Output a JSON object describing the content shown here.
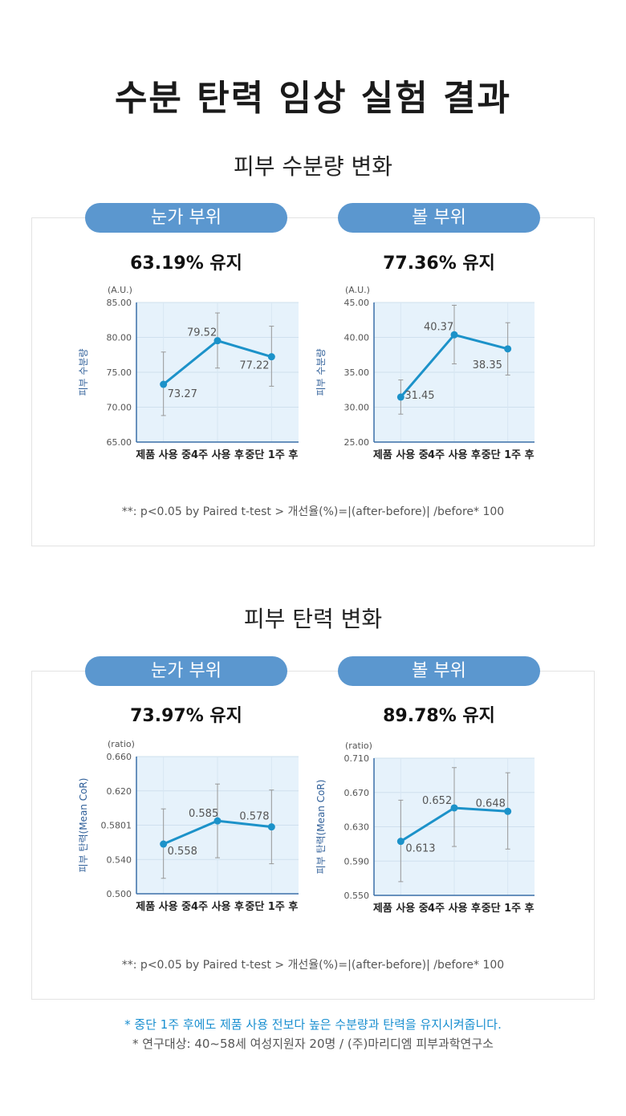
{
  "title": "수분 탄력 임상 실험 결과",
  "sections": [
    {
      "title": "피부 수분량 변화",
      "note": "**: p<0.05 by Paired t-test > 개선율(%)=|(after-before)| /before* 100"
    },
    {
      "title": "피부 탄력 변화",
      "note": "**: p<0.05 by Paired t-test > 개선율(%)=|(after-before)| /before* 100"
    }
  ],
  "panels": [
    {
      "pill": "눈가 부위",
      "percent": "63.19% 유지"
    },
    {
      "pill": "볼 부위",
      "percent": "77.36% 유지"
    },
    {
      "pill": "눈가 부위",
      "percent": "73.97% 유지"
    },
    {
      "pill": "볼 부위",
      "percent": "89.78% 유지"
    }
  ],
  "chart_data": [
    {
      "type": "line",
      "unit": "(A.U.)",
      "ylabel": "피부 수분량",
      "categories": [
        "제품 사용 중",
        "4주 사용 후",
        "중단 1주 후"
      ],
      "values": [
        73.27,
        79.52,
        77.22
      ],
      "value_labels": [
        "73.27",
        "79.52",
        "77.22"
      ],
      "error_low": [
        68.8,
        75.6,
        73.0
      ],
      "error_high": [
        77.9,
        83.5,
        81.6
      ],
      "ylim": [
        65.0,
        85.0
      ],
      "yticks": [
        "65.00",
        "70.00",
        "75.00",
        "80.00",
        "85.00"
      ],
      "grid": true,
      "line_color": "#1c92c9",
      "error_color": "#999999"
    },
    {
      "type": "line",
      "unit": "(A.U.)",
      "ylabel": "피부 수분량",
      "categories": [
        "제품 사용 중",
        "4주 사용 후",
        "중단 1주 후"
      ],
      "values": [
        31.45,
        40.37,
        38.35
      ],
      "value_labels": [
        "31.45",
        "40.37",
        "38.35"
      ],
      "error_low": [
        29.0,
        36.2,
        34.6
      ],
      "error_high": [
        33.9,
        44.6,
        42.1
      ],
      "ylim": [
        25.0,
        45.0
      ],
      "yticks": [
        "25.00",
        "30.00",
        "35.00",
        "40.00",
        "45.00"
      ],
      "grid": true,
      "line_color": "#1c92c9",
      "error_color": "#999999"
    },
    {
      "type": "line",
      "unit": "(ratio)",
      "ylabel": "피부 탄력(Mean CoR)",
      "categories": [
        "제품 사용 중",
        "4주 사용 후",
        "중단 1주 후"
      ],
      "values": [
        0.558,
        0.585,
        0.578
      ],
      "value_labels": [
        "0.558",
        "0.585",
        "0.578"
      ],
      "error_low": [
        0.518,
        0.542,
        0.535
      ],
      "error_high": [
        0.599,
        0.628,
        0.621
      ],
      "ylim": [
        0.5,
        0.66
      ],
      "yticks": [
        "0.500",
        "0.540",
        "0.5801",
        "0.620",
        "0.660"
      ],
      "grid": true,
      "line_color": "#1c92c9",
      "error_color": "#999999"
    },
    {
      "type": "line",
      "unit": "(ratio)",
      "ylabel": "피부 탄력(Mean CoR)",
      "categories": [
        "제품 사용 중",
        "4주 사용 후",
        "중단 1주 후"
      ],
      "values": [
        0.613,
        0.652,
        0.648
      ],
      "value_labels": [
        "0.613",
        "0.652",
        "0.648"
      ],
      "error_low": [
        0.566,
        0.607,
        0.604
      ],
      "error_high": [
        0.661,
        0.699,
        0.693
      ],
      "ylim": [
        0.55,
        0.71
      ],
      "yticks": [
        "0.550",
        "0.590",
        "0.630",
        "0.670",
        "0.710"
      ],
      "grid": true,
      "line_color": "#1c92c9",
      "error_color": "#999999"
    }
  ],
  "footer": {
    "highlight": "* 중단 1주 후에도 제품 사용 전보다 높은 수분량과 탄력을 유지시켜줍니다.",
    "source": "* 연구대상: 40~58세 여성지원자 20명 / (주)마리디엠 피부과학연구소"
  }
}
